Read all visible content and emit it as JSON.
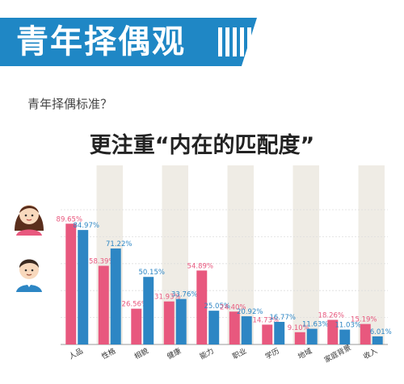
{
  "header": {
    "title": "青年择偶观"
  },
  "subtitle": "青年择偶标准？",
  "headline": "更注重“内在的匹配度”",
  "colors": {
    "banner": "#1f87c5",
    "female": "#e8587e",
    "male": "#2d86c4",
    "column_bg": "#efece5"
  },
  "chart_data": {
    "type": "bar",
    "categories": [
      "人品",
      "性格",
      "相貌",
      "健康",
      "能力",
      "职业",
      "学历",
      "地域",
      "家庭背景",
      "收入"
    ],
    "series": [
      {
        "values": [
          89.65,
          58.39,
          26.56,
          31.93,
          54.89,
          24.4,
          14.73,
          9.1,
          18.26,
          15.19
        ],
        "labels": [
          "89.65%",
          "58.39%",
          "26.56%",
          "31.93%",
          "54.89%",
          "24.40%",
          "14.73%",
          "9.10%",
          "18.26%",
          "15.19%"
        ],
        "color": "#e8587e",
        "icon": "female-avatar-icon"
      },
      {
        "values": [
          84.97,
          71.22,
          50.15,
          33.76,
          25.05,
          20.92,
          16.77,
          11.63,
          11.03,
          6.01
        ],
        "labels": [
          "84.97%",
          "71.22%",
          "50.15%",
          "33.76%",
          "25.05%",
          "20.92%",
          "16.77%",
          "11.63%",
          "11.03%",
          "6.01%"
        ],
        "color": "#2d86c4",
        "icon": "male-avatar-icon"
      }
    ],
    "ylim": [
      0,
      100
    ],
    "grid": true
  }
}
